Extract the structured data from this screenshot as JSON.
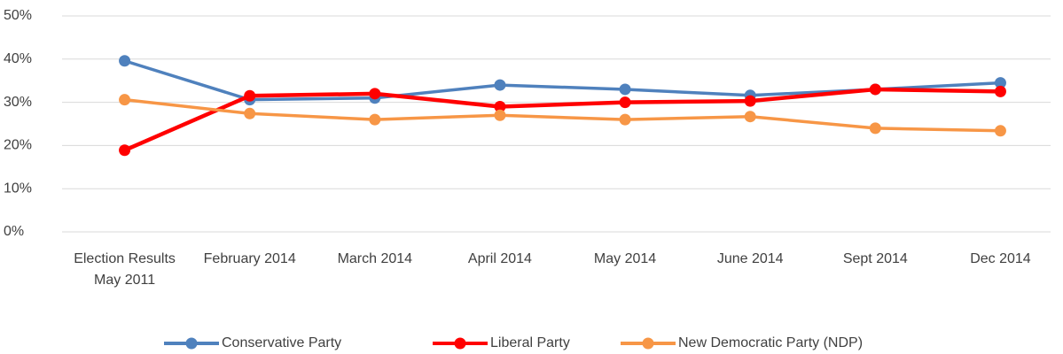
{
  "chart_data": {
    "type": "line",
    "categories": [
      "Election Results May 2011",
      "February 2014",
      "March 2014",
      "April 2014",
      "May 2014",
      "June 2014",
      "Sept 2014",
      "Dec 2014"
    ],
    "series": [
      {
        "name": "Conservative Party",
        "color": "#4f81bd",
        "values": [
          39.6,
          30.6,
          31,
          34,
          33,
          31.6,
          33,
          34.5
        ]
      },
      {
        "name": "Liberal Party",
        "color": "#ff0000",
        "values": [
          18.9,
          31.5,
          32,
          29,
          30,
          30.3,
          33,
          32.5
        ]
      },
      {
        "name": "New Democratic Party (NDP)",
        "color": "#f79646",
        "values": [
          30.6,
          27.4,
          26,
          27,
          26,
          26.7,
          24,
          23.4
        ]
      }
    ],
    "ylim": [
      0,
      50
    ],
    "yticks": [
      {
        "value": 0,
        "label": "0%"
      },
      {
        "value": 10,
        "label": "10%"
      },
      {
        "value": 20,
        "label": "20%"
      },
      {
        "value": 30,
        "label": "30%"
      },
      {
        "value": 40,
        "label": "40%"
      },
      {
        "value": 50,
        "label": "50%"
      }
    ],
    "grid": true,
    "legend": "bottom"
  }
}
